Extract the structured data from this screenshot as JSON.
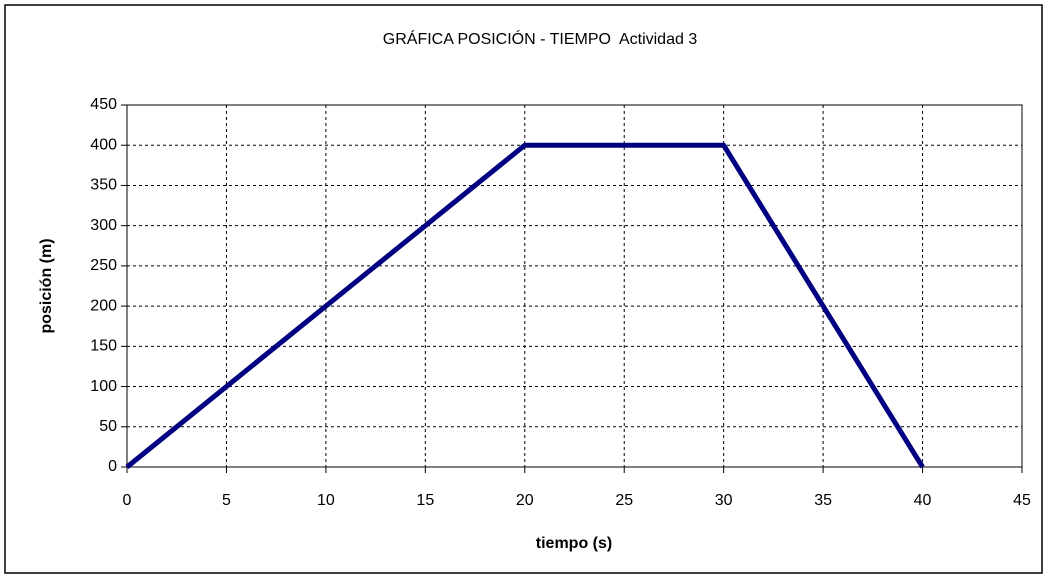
{
  "chart_data": {
    "type": "line",
    "title": "GRÁFICA POSICIÓN - TIEMPO  Actividad 3",
    "x_label": "tiempo (s)",
    "y_label": "posición (m)",
    "x": [
      0,
      20,
      30,
      40
    ],
    "series": [
      {
        "name": "posición",
        "color": "#000080",
        "values": [
          0,
          400,
          400,
          0
        ]
      }
    ],
    "xlim": [
      0,
      45
    ],
    "xticks": [
      0,
      5,
      10,
      15,
      20,
      25,
      30,
      35,
      40,
      45
    ],
    "ylim": [
      0,
      450
    ],
    "yticks": [
      0,
      50,
      100,
      150,
      200,
      250,
      300,
      350,
      400,
      450
    ],
    "grid": true
  }
}
